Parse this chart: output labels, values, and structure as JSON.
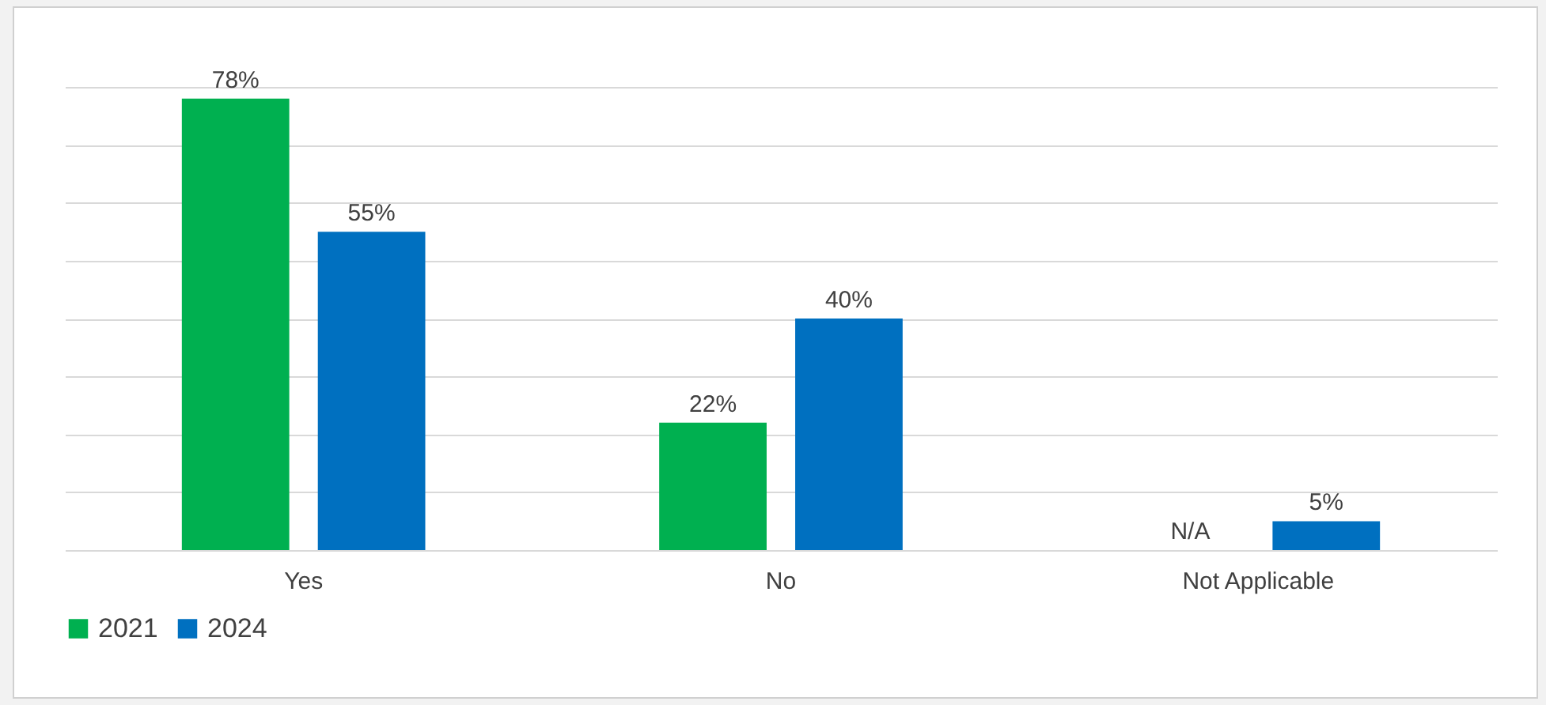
{
  "chart_data": {
    "type": "bar",
    "categories": [
      "Yes",
      "No",
      "Not Applicable"
    ],
    "series": [
      {
        "name": "2021",
        "color": "#00b050",
        "values": [
          78,
          22,
          null
        ],
        "value_labels": [
          "78%",
          "22%",
          "N/A"
        ]
      },
      {
        "name": "2024",
        "color": "#0070c0",
        "values": [
          55,
          40,
          5
        ],
        "value_labels": [
          "55%",
          "40%",
          "5%"
        ]
      }
    ],
    "grid": "y",
    "tick_labels": "x",
    "legend": "bottom"
  }
}
